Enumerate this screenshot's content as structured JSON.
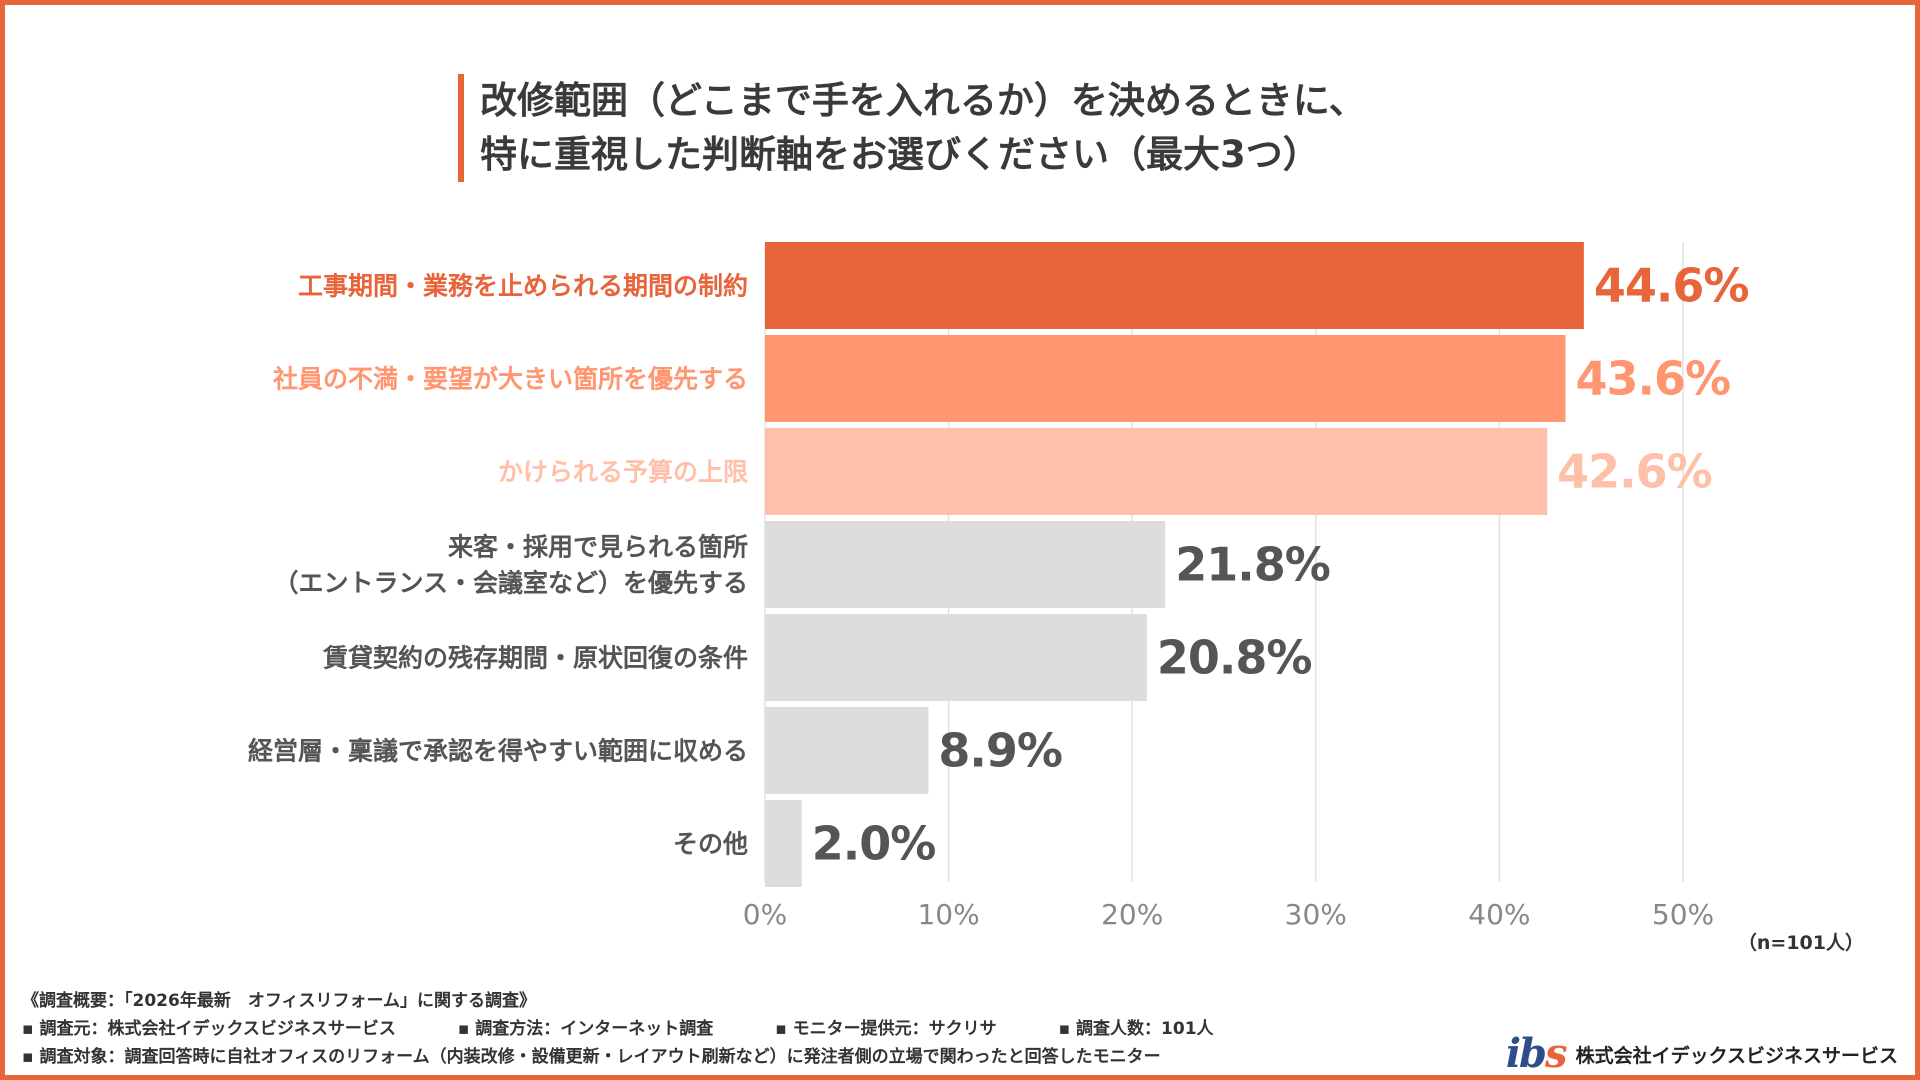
{
  "title": {
    "line1": "改修範囲（どこまで手を入れるか）を決めるときに、",
    "line2": "特に重視した判断軸をお選びください（最大3つ）"
  },
  "chart_data": {
    "type": "bar",
    "orientation": "horizontal",
    "categories": [
      [
        "工事期間・業務を止められる期間の制約"
      ],
      [
        "社員の不満・要望が大きい箇所を優先する"
      ],
      [
        "かけられる予算の上限"
      ],
      [
        "来客・採用で見られる箇所",
        "（エントランス・会議室など）を優先する"
      ],
      [
        "賃貸契約の残存期間・原状回復の条件"
      ],
      [
        "経営層・稟議で承認を得やすい範囲に収める"
      ],
      [
        "その他"
      ]
    ],
    "values": [
      44.6,
      43.6,
      42.6,
      21.8,
      20.8,
      8.9,
      2.0
    ],
    "value_labels": [
      "44.6%",
      "43.6%",
      "42.6%",
      "21.8%",
      "20.8%",
      "8.9%",
      "2.0%"
    ],
    "bar_colors": [
      "#e8643a",
      "#ff9670",
      "#ffc0aa",
      "#dddddd",
      "#dddddd",
      "#dddddd",
      "#dddddd"
    ],
    "label_colors": [
      "#e8643a",
      "#ff9670",
      "#ffc0aa",
      "#555555",
      "#555555",
      "#555555",
      "#555555"
    ],
    "x_ticks": [
      "0%",
      "10%",
      "20%",
      "30%",
      "40%",
      "50%"
    ],
    "xlim": [
      0,
      50
    ],
    "grid": true
  },
  "sample_note": "（n=101人）",
  "footer": {
    "overview": "《調査概要：「2026年最新　オフィスリフォーム」に関する調査》",
    "row1": [
      "▪ 調査元：株式会社イデックスビジネスサービス",
      "▪ 調査方法：インターネット調査",
      "▪ モニター提供元：サクリサ",
      "▪ 調査人数：101人"
    ],
    "row2": "▪ 調査対象：調査回答時に自社オフィスのリフォーム（内装改修・設備更新・レイアウト刷新など）に発注者側の立場で関わったと回答したモニター"
  },
  "logo": {
    "mark_main": "ib",
    "mark_accent": "s",
    "company": "株式会社イデックスビジネスサービス"
  }
}
